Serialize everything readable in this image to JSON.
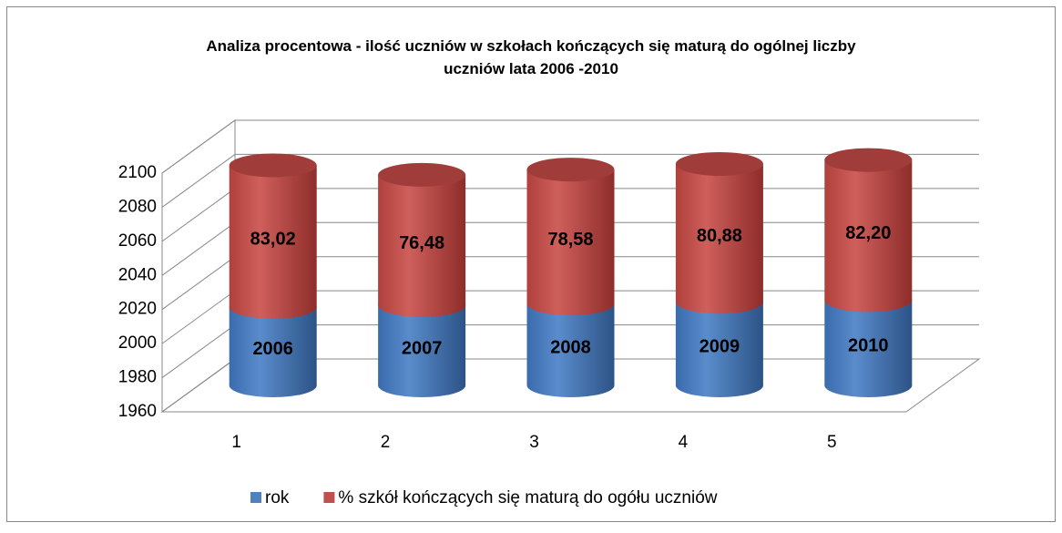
{
  "chart_data": {
    "type": "bar3d_stacked",
    "title": "Analiza procentowa - ilość uczniów w szkołach kończących się maturą do ogólnej liczby uczniów lata 2006 -2010",
    "categories": [
      "1",
      "2",
      "3",
      "4",
      "5"
    ],
    "series": [
      {
        "name": "rok",
        "color": "#4f81bd",
        "values": [
          2006,
          2007,
          2008,
          2009,
          2010
        ]
      },
      {
        "name": "% szkół kończących się maturą do ogółu uczniów",
        "color": "#c0504d",
        "values": [
          83.02,
          76.48,
          78.58,
          80.88,
          82.2
        ],
        "value_labels": [
          "83,02",
          "76,48",
          "78,58",
          "80,88",
          "82,20"
        ]
      }
    ],
    "stacked": true,
    "ylim": [
      1960,
      2100
    ],
    "yticks": [
      1960,
      1980,
      2000,
      2020,
      2040,
      2060,
      2080,
      2100
    ],
    "grid": true,
    "legend": "bottom"
  }
}
